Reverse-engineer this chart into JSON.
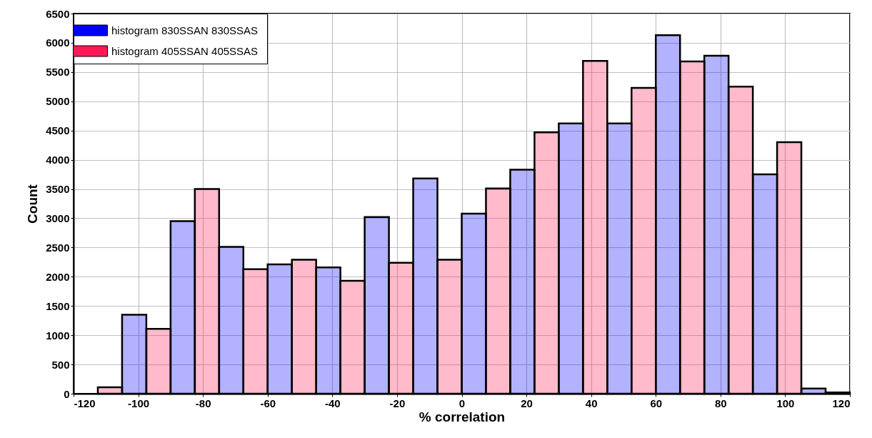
{
  "chart_data": {
    "type": "bar",
    "xlabel": "% correlation",
    "ylabel": "Count",
    "series": [
      {
        "name": "histogram 830SSAN  830SSAS",
        "color": "#0000ff",
        "x": [
          -101.25,
          -86.25,
          -71.25,
          -56.25,
          -41.25,
          -26.25,
          -11.25,
          3.75,
          18.75,
          33.75,
          48.75,
          63.75,
          78.75,
          93.75,
          108.75
        ],
        "values": [
          1350,
          2950,
          2510,
          2210,
          2160,
          3020,
          3680,
          3080,
          3830,
          4620,
          4620,
          6130,
          5780,
          3750,
          90
        ]
      },
      {
        "name": "histogram 405SSAN  405SSAS",
        "color": "#ff1a55",
        "x": [
          -108.75,
          -93.75,
          -78.75,
          -63.75,
          -48.75,
          -33.75,
          -18.75,
          -3.75,
          11.25,
          26.25,
          41.25,
          56.25,
          71.25,
          86.25,
          101.25,
          116.25
        ],
        "values": [
          110,
          1110,
          3500,
          2130,
          2290,
          1930,
          2240,
          2290,
          3510,
          4470,
          5690,
          5230,
          5680,
          5250,
          4300,
          20
        ]
      }
    ],
    "xlim": [
      -120,
      120
    ],
    "xticks": [
      -120,
      -100,
      -80,
      -60,
      -40,
      -20,
      0,
      20,
      40,
      60,
      80,
      100,
      120
    ],
    "ylim": [
      0,
      6500
    ],
    "yticks": [
      0,
      500,
      1000,
      1500,
      2000,
      2500,
      3000,
      3500,
      4000,
      4500,
      5000,
      5500,
      6000,
      6500
    ],
    "grid": true,
    "legend": "top left"
  }
}
